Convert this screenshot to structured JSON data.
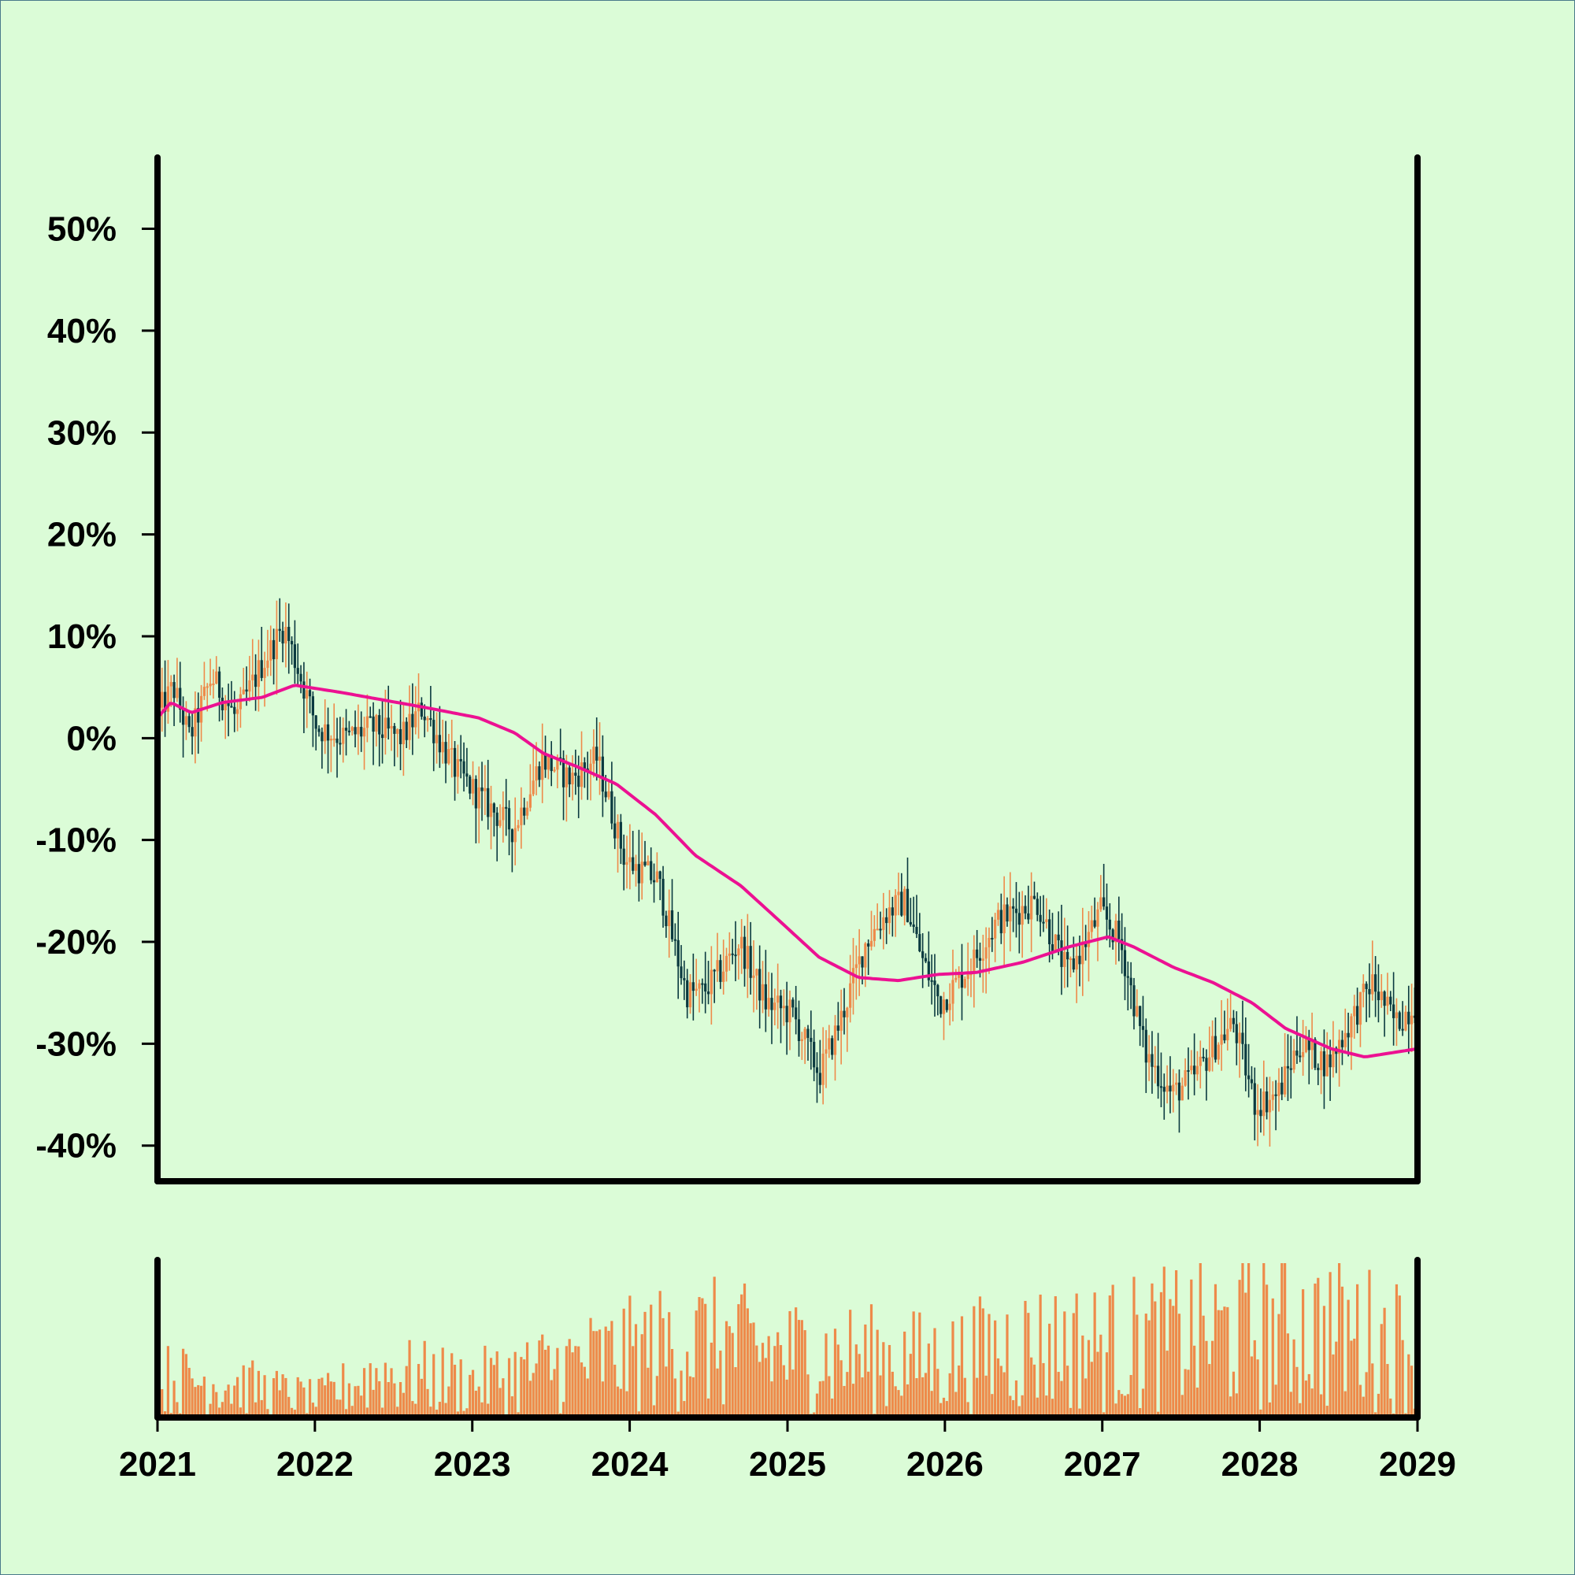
{
  "colors": {
    "background": "#dbfcd7",
    "up": "#ee8a4a",
    "down": "#0b3a40",
    "moving_average": "#ec1192",
    "volume": "#ee8a4a",
    "axis": "#000000"
  },
  "chart_data": {
    "type": "candlestick",
    "title": "",
    "xlabel": "",
    "ylabel": "",
    "y_unit": "%",
    "ylim": [
      -43.5,
      57
    ],
    "xlim": [
      "2021-01-01",
      "2029-01-01"
    ],
    "x_tick_labels": [
      "2021",
      "2022",
      "2023",
      "2024",
      "2025",
      "2026",
      "2027",
      "2028",
      "2029"
    ],
    "y_tick_labels": [
      "50%",
      "40%",
      "30%",
      "20%",
      "10%",
      "0%",
      "-10%",
      "-20%",
      "-30%",
      "-40%"
    ],
    "y_ticks": [
      50,
      40,
      30,
      20,
      10,
      0,
      -10,
      -20,
      -30,
      -40
    ],
    "grid": false,
    "legend": "none",
    "candle_period": "weekly",
    "close_path": [
      [
        "2021-01-01",
        2
      ],
      [
        "2021-02-10",
        5
      ],
      [
        "2021-03-20",
        0
      ],
      [
        "2021-05-10",
        6
      ],
      [
        "2021-07-05",
        2
      ],
      [
        "2021-09-01",
        7
      ],
      [
        "2021-10-25",
        11
      ],
      [
        "2022-01-10",
        1
      ],
      [
        "2022-03-15",
        0
      ],
      [
        "2022-05-15",
        1
      ],
      [
        "2022-07-25",
        0
      ],
      [
        "2022-09-10",
        3
      ],
      [
        "2022-11-25",
        -3
      ],
      [
        "2023-01-25",
        -6
      ],
      [
        "2023-04-10",
        -9
      ],
      [
        "2023-06-15",
        -2
      ],
      [
        "2023-08-20",
        -4
      ],
      [
        "2023-10-20",
        -2
      ],
      [
        "2023-12-25",
        -12
      ],
      [
        "2024-03-10",
        -14
      ],
      [
        "2024-05-15",
        -25
      ],
      [
        "2024-06-20",
        -25
      ],
      [
        "2024-08-01",
        -23
      ],
      [
        "2024-09-15",
        -20
      ],
      [
        "2024-11-15",
        -26
      ],
      [
        "2025-01-15",
        -27
      ],
      [
        "2025-03-20",
        -33
      ],
      [
        "2025-05-05",
        -28
      ],
      [
        "2025-07-05",
        -20
      ],
      [
        "2025-08-25",
        -17
      ],
      [
        "2025-10-05",
        -16
      ],
      [
        "2025-11-15",
        -22
      ],
      [
        "2025-12-25",
        -26
      ],
      [
        "2026-03-10",
        -22
      ],
      [
        "2026-05-05",
        -18
      ],
      [
        "2026-08-05",
        -16
      ],
      [
        "2026-10-15",
        -23
      ],
      [
        "2026-11-15",
        -21
      ],
      [
        "2027-01-01",
        -17
      ],
      [
        "2027-02-15",
        -20
      ],
      [
        "2027-04-15",
        -31
      ],
      [
        "2027-06-15",
        -35
      ],
      [
        "2027-08-10",
        -33
      ],
      [
        "2027-09-25",
        -30
      ],
      [
        "2027-11-05",
        -28
      ],
      [
        "2027-12-25",
        -36
      ],
      [
        "2028-02-15",
        -35
      ],
      [
        "2028-04-05",
        -30
      ],
      [
        "2028-06-10",
        -32
      ],
      [
        "2028-08-01",
        -28
      ],
      [
        "2028-09-20",
        -24
      ],
      [
        "2028-11-15",
        -28
      ],
      [
        "2028-12-31",
        -26
      ]
    ],
    "moving_average": [
      [
        "2021-01-01",
        2.0
      ],
      [
        "2021-02-01",
        3.5
      ],
      [
        "2021-03-20",
        2.5
      ],
      [
        "2021-06-01",
        3.5
      ],
      [
        "2021-09-01",
        4.0
      ],
      [
        "2021-11-15",
        5.2
      ],
      [
        "2022-03-01",
        4.5
      ],
      [
        "2022-06-01",
        3.8
      ],
      [
        "2022-09-15",
        3.0
      ],
      [
        "2023-01-15",
        2.0
      ],
      [
        "2023-04-10",
        0.5
      ],
      [
        "2023-06-15",
        -1.5
      ],
      [
        "2023-09-01",
        -2.8
      ],
      [
        "2023-12-01",
        -4.5
      ],
      [
        "2024-03-01",
        -7.5
      ],
      [
        "2024-06-01",
        -11.5
      ],
      [
        "2024-09-15",
        -14.5
      ],
      [
        "2024-12-15",
        -18.0
      ],
      [
        "2025-03-15",
        -21.5
      ],
      [
        "2025-06-15",
        -23.5
      ],
      [
        "2025-09-15",
        -23.8
      ],
      [
        "2025-12-15",
        -23.2
      ],
      [
        "2026-03-15",
        -23.0
      ],
      [
        "2026-07-01",
        -22.0
      ],
      [
        "2026-10-15",
        -20.5
      ],
      [
        "2027-01-15",
        -19.5
      ],
      [
        "2027-03-15",
        -20.5
      ],
      [
        "2027-06-15",
        -22.5
      ],
      [
        "2027-09-15",
        -24.0
      ],
      [
        "2027-12-15",
        -26.0
      ],
      [
        "2028-03-01",
        -28.5
      ],
      [
        "2028-06-15",
        -30.5
      ],
      [
        "2028-09-01",
        -31.3
      ],
      [
        "2028-12-31",
        -30.5
      ]
    ],
    "volume_ylim": [
      0,
      100
    ],
    "volume_trend": [
      [
        "2021-01-01",
        25
      ],
      [
        "2021-06-01",
        22
      ],
      [
        "2022-01-01",
        12
      ],
      [
        "2022-06-01",
        28
      ],
      [
        "2023-01-01",
        22
      ],
      [
        "2023-06-01",
        30
      ],
      [
        "2024-01-01",
        40
      ],
      [
        "2024-06-01",
        48
      ],
      [
        "2025-01-01",
        40
      ],
      [
        "2025-06-01",
        38
      ],
      [
        "2026-01-01",
        35
      ],
      [
        "2026-06-01",
        45
      ],
      [
        "2027-01-01",
        45
      ],
      [
        "2027-06-01",
        50
      ],
      [
        "2028-01-01",
        55
      ],
      [
        "2028-06-01",
        55
      ],
      [
        "2028-12-31",
        45
      ]
    ]
  }
}
